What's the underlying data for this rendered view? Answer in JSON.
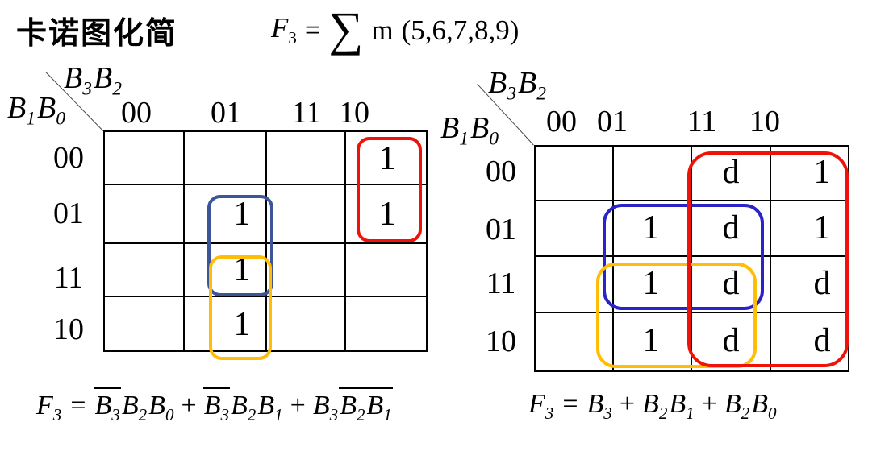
{
  "title": "卡诺图化简",
  "top_formula": {
    "func": "F",
    "func_sub": "3",
    "equals": "=",
    "sigma": "∑",
    "operator": "m",
    "minterms": "(5,6,7,8,9)"
  },
  "colors": {
    "red": "#ee1209",
    "blue_left": "#3b5598",
    "blue_right": "#2a23c8",
    "yellow": "#ffbd06",
    "text": "#000000"
  },
  "kmaps": [
    {
      "id": "left",
      "top_var": [
        {
          "b": "B",
          "s": "3"
        },
        {
          "b": "B",
          "s": "2"
        }
      ],
      "side_var": [
        {
          "b": "B",
          "s": "1"
        },
        {
          "b": "B",
          "s": "0"
        }
      ],
      "col_labels": [
        "00",
        "01",
        "11",
        "10"
      ],
      "row_labels": [
        "00",
        "01",
        "11",
        "10"
      ],
      "cells": [
        [
          "",
          "",
          "",
          "1"
        ],
        [
          "",
          "1",
          "",
          "1"
        ],
        [
          "",
          "1",
          "",
          ""
        ],
        [
          "",
          "1",
          "",
          ""
        ]
      ],
      "groups": [
        {
          "id": "red",
          "color_key": "red",
          "covers": "column 10, rows 00-01"
        },
        {
          "id": "blue",
          "color_key": "blue_left",
          "covers": "column 01, rows 01-11"
        },
        {
          "id": "yellow",
          "color_key": "yellow",
          "covers": "column 01, rows 11-10"
        }
      ],
      "formula": [
        {
          "b": "F",
          "s": "3"
        },
        {
          "op": "="
        },
        {
          "b": "B",
          "s": "3",
          "bar": true
        },
        {
          "b": "B",
          "s": "2"
        },
        {
          "b": "B",
          "s": "0"
        },
        {
          "op": "+"
        },
        {
          "b": "B",
          "s": "3",
          "bar": true
        },
        {
          "b": "B",
          "s": "2"
        },
        {
          "b": "B",
          "s": "1"
        },
        {
          "op": "+"
        },
        {
          "b": "B",
          "s": "3"
        },
        {
          "b": "B",
          "s": "2",
          "bar": true
        },
        {
          "b": "B",
          "s": "1",
          "bar": true
        }
      ]
    },
    {
      "id": "right",
      "top_var": [
        {
          "b": "B",
          "s": "3"
        },
        {
          "b": "B",
          "s": "2"
        }
      ],
      "side_var": [
        {
          "b": "B",
          "s": "1"
        },
        {
          "b": "B",
          "s": "0"
        }
      ],
      "col_labels": [
        "00",
        "01",
        "11",
        "10"
      ],
      "row_labels": [
        "00",
        "01",
        "11",
        "10"
      ],
      "cells": [
        [
          "",
          "",
          "d",
          "1"
        ],
        [
          "",
          "1",
          "d",
          "1"
        ],
        [
          "",
          "1",
          "d",
          "d"
        ],
        [
          "",
          "1",
          "d",
          "d"
        ]
      ],
      "groups": [
        {
          "id": "blue",
          "color_key": "blue_right",
          "covers": "columns 01-11, rows 01-11"
        },
        {
          "id": "yellow",
          "color_key": "yellow",
          "covers": "columns 01-11, rows 11-10"
        },
        {
          "id": "red",
          "color_key": "red",
          "covers": "columns 11-10, all rows"
        }
      ],
      "formula": [
        {
          "b": "F",
          "s": "3"
        },
        {
          "op": "="
        },
        {
          "b": "B",
          "s": "3"
        },
        {
          "op": "+"
        },
        {
          "b": "B",
          "s": "2"
        },
        {
          "b": "B",
          "s": "1"
        },
        {
          "op": "+"
        },
        {
          "b": "B",
          "s": "2"
        },
        {
          "b": "B",
          "s": "0"
        }
      ]
    }
  ]
}
